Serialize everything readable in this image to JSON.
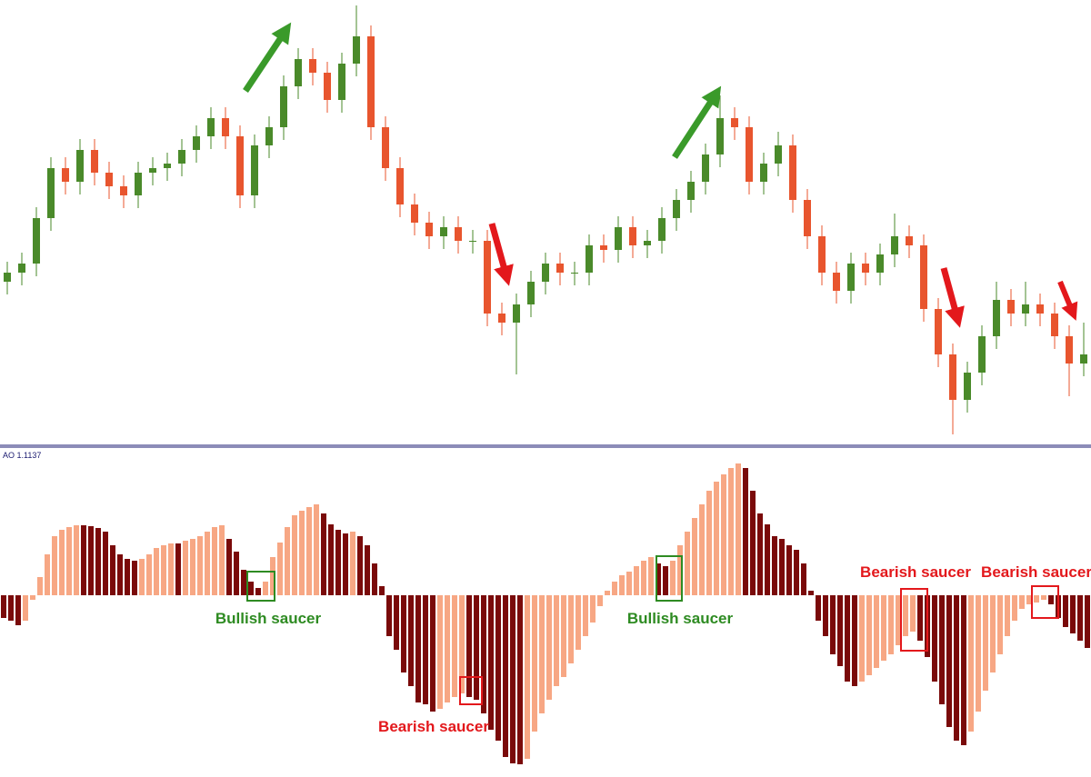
{
  "chart_data": [
    {
      "type": "candlestick",
      "open": [
        180,
        190,
        200,
        250,
        305,
        290,
        325,
        300,
        285,
        275,
        300,
        305,
        310,
        325,
        340,
        360,
        340,
        275,
        330,
        350,
        395,
        425,
        410,
        380,
        420,
        450,
        350,
        305,
        265,
        245,
        230,
        240,
        225,
        225,
        145,
        135,
        155,
        180,
        200,
        190,
        190,
        220,
        215,
        240,
        220,
        225,
        250,
        270,
        290,
        320,
        360,
        350,
        290,
        310,
        330,
        270,
        230,
        190,
        170,
        200,
        190,
        210,
        230,
        220,
        150,
        100,
        50,
        80,
        120,
        160,
        145,
        155,
        145,
        120,
        90
      ],
      "high": [
        202,
        212,
        262,
        317,
        317,
        337,
        337,
        312,
        297,
        312,
        317,
        322,
        337,
        352,
        372,
        372,
        352,
        342,
        362,
        407,
        437,
        437,
        422,
        432,
        484,
        462,
        362,
        317,
        277,
        257,
        252,
        252,
        237,
        237,
        157,
        167,
        192,
        212,
        212,
        202,
        232,
        232,
        252,
        252,
        237,
        262,
        282,
        302,
        332,
        385,
        372,
        362,
        322,
        345,
        342,
        282,
        242,
        202,
        212,
        212,
        222,
        255,
        242,
        232,
        162,
        112,
        92,
        132,
        180,
        172,
        180,
        167,
        157,
        132,
        135
      ],
      "low": [
        166,
        176,
        186,
        236,
        276,
        276,
        286,
        271,
        261,
        261,
        286,
        291,
        296,
        311,
        326,
        326,
        261,
        261,
        316,
        336,
        381,
        396,
        366,
        366,
        406,
        336,
        291,
        251,
        231,
        216,
        216,
        211,
        211,
        131,
        121,
        78,
        141,
        166,
        176,
        176,
        176,
        201,
        201,
        206,
        206,
        211,
        236,
        256,
        276,
        306,
        336,
        276,
        276,
        296,
        256,
        216,
        176,
        156,
        156,
        176,
        176,
        196,
        206,
        136,
        86,
        12,
        36,
        66,
        106,
        131,
        131,
        131,
        106,
        54,
        76
      ],
      "close": [
        190,
        200,
        250,
        305,
        290,
        325,
        300,
        285,
        275,
        300,
        305,
        310,
        325,
        340,
        360,
        340,
        275,
        330,
        350,
        395,
        425,
        410,
        380,
        420,
        450,
        350,
        305,
        265,
        245,
        230,
        240,
        225,
        225,
        145,
        135,
        155,
        180,
        200,
        190,
        190,
        220,
        215,
        240,
        220,
        225,
        250,
        270,
        290,
        320,
        360,
        350,
        290,
        310,
        330,
        270,
        230,
        190,
        170,
        200,
        190,
        210,
        230,
        220,
        150,
        100,
        50,
        80,
        120,
        160,
        145,
        155,
        145,
        120,
        90,
        100
      ],
      "up_color": "#4a8a2a",
      "down_color": "#e8552e",
      "ylim": [
        0,
        490
      ]
    },
    {
      "type": "bar",
      "title": "AO 1.1137",
      "values": [
        -25,
        -28,
        -33,
        -28,
        -5,
        20,
        45,
        65,
        72,
        75,
        77,
        77,
        76,
        74,
        70,
        55,
        45,
        40,
        38,
        40,
        45,
        52,
        55,
        57,
        57,
        60,
        62,
        65,
        70,
        75,
        77,
        62,
        48,
        28,
        15,
        8,
        15,
        42,
        58,
        75,
        88,
        93,
        97,
        100,
        90,
        78,
        72,
        68,
        70,
        65,
        55,
        35,
        10,
        -45,
        -60,
        -85,
        -100,
        -118,
        -120,
        -128,
        -125,
        -118,
        -112,
        -108,
        -112,
        -115,
        -130,
        -148,
        -160,
        -178,
        -185,
        -186,
        -180,
        -150,
        -130,
        -115,
        -100,
        -90,
        -75,
        -60,
        -45,
        -30,
        -12,
        5,
        15,
        22,
        26,
        32,
        38,
        42,
        35,
        32,
        38,
        55,
        70,
        85,
        100,
        115,
        125,
        133,
        140,
        145,
        140,
        115,
        90,
        78,
        65,
        62,
        55,
        50,
        35,
        5,
        -28,
        -45,
        -65,
        -78,
        -95,
        -100,
        -95,
        -88,
        -80,
        -72,
        -65,
        -55,
        -45,
        -40,
        -50,
        -68,
        -95,
        -120,
        -145,
        -160,
        -165,
        -150,
        -128,
        -105,
        -85,
        -65,
        -45,
        -28,
        -15,
        -10,
        -8,
        -5,
        -10,
        -25,
        -35,
        -42,
        -50,
        -58
      ],
      "up_color": "#f7a784",
      "down_color": "#7a0a0a",
      "ylim": [
        -200,
        160
      ],
      "annotations": [
        "Bullish saucer",
        "Bearish saucer",
        "Bullish saucer",
        "Bearish saucer",
        "Bearish saucer"
      ]
    }
  ]
}
